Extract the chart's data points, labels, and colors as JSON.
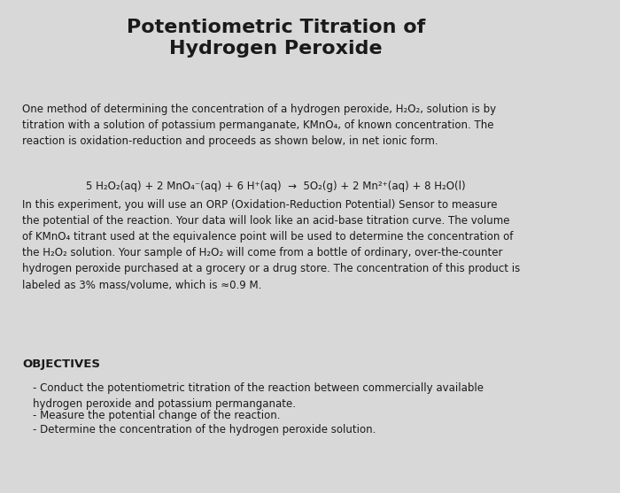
{
  "title_line1": "Potentiometric Titration of",
  "title_line2": "Hydrogen Peroxide",
  "bg_color": "#d8d8d8",
  "card_color": "#f0f0f0",
  "title_fontsize": 16,
  "body_fontsize": 8.5,
  "eq_fontsize": 8.5,
  "obj_title_fontsize": 9.5,
  "para1": "One method of determining the concentration of a hydrogen peroxide, H₂O₂, solution is by\ntitration with a solution of potassium permanganate, KMnO₄, of known concentration. The\nreaction is oxidation-reduction and proceeds as shown below, in net ionic form.",
  "equation": "5 H₂O₂(aq) + 2 MnO₄⁻(aq) + 6 H⁺(aq)  →  5O₂(g) + 2 Mn²⁺(aq) + 8 H₂O(l)",
  "para2": "In this experiment, you will use an ORP (Oxidation-Reduction Potential) Sensor to measure\nthe potential of the reaction. Your data will look like an acid-base titration curve. The volume\nof KMnO₄ titrant used at the equivalence point will be used to determine the concentration of\nthe H₂O₂ solution. Your sample of H₂O₂ will come from a bottle of ordinary, over-the-counter\nhydrogen peroxide purchased at a grocery or a drug store. The concentration of this product is\nlabeled as 3% mass/volume, which is ≈0.9 M.",
  "objectives_title": "OBJECTIVES",
  "bullet1": "Conduct the potentiometric titration of the reaction between commercially available\nhydrogen peroxide and potassium permanganate.",
  "bullet2": "Measure the potential change of the reaction.",
  "bullet3": "Determine the concentration of the hydrogen peroxide solution."
}
